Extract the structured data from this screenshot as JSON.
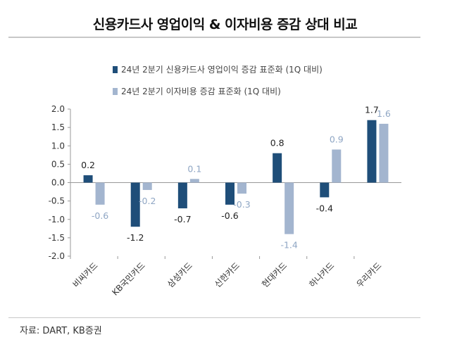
{
  "title": "신용카드사 영업이익 & 이자비용 증감 상대 비교",
  "source": "자료: DART, KB증권",
  "colors": {
    "series1": "#1f4e79",
    "series2": "#a3b5cf",
    "axis": "#999999",
    "label_light": "#8fa6c4"
  },
  "chart_data": {
    "type": "bar",
    "categories": [
      "비씨카드",
      "KB국민카드",
      "삼성카드",
      "신한카드",
      "현대카드",
      "하나카드",
      "우리카드"
    ],
    "series": [
      {
        "name": "24년 2분기 신용카드사 영업이익 증감 표준화 (1Q 대비)",
        "values": [
          0.2,
          -1.2,
          -0.7,
          -0.6,
          0.8,
          -0.4,
          1.7
        ]
      },
      {
        "name": "24년 2분기 이자비용 증감 표준화 (1Q 대비)",
        "values": [
          -0.6,
          -0.2,
          0.1,
          -0.3,
          -1.4,
          0.9,
          1.6
        ]
      }
    ],
    "data_labels": [
      [
        "0.2",
        "-1.2",
        "-0.7",
        "-0.6",
        "0.8",
        "-0.4",
        "1.7"
      ],
      [
        "-0.6",
        "-0.2",
        "0.1",
        "-0.3",
        "-1.4",
        "0.9",
        "1.6"
      ]
    ],
    "yticks": [
      "2.0",
      "1.5",
      "1.0",
      "0.5",
      "0.0",
      "-0.5",
      "-1.0",
      "-1.5",
      "-2.0"
    ],
    "ylim": [
      -2.0,
      2.0
    ],
    "xlabel": "",
    "ylabel": "",
    "legend_position": "top-center"
  }
}
